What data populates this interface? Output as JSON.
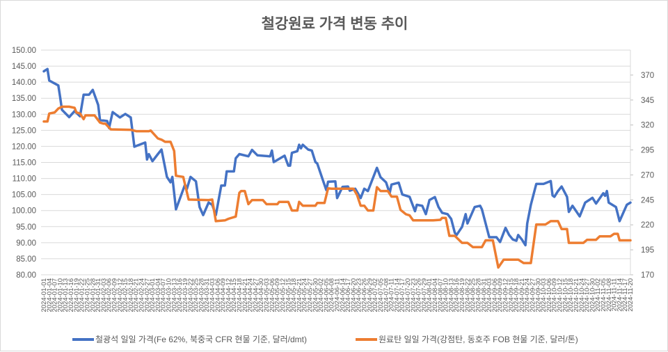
{
  "chart_data": {
    "type": "line",
    "title": "철강원료 가격 변동 추이",
    "xlabel": "",
    "ylabel": "",
    "x_start": "2024-01-01",
    "x_end": "2024-11-20",
    "y_left": {
      "lim": [
        80,
        150
      ],
      "ticks": [
        "80.00",
        "85.00",
        "90.00",
        "95.00",
        "100.00",
        "105.00",
        "110.00",
        "115.00",
        "120.00",
        "125.00",
        "130.00",
        "135.00",
        "140.00",
        "145.00",
        "150.00"
      ]
    },
    "y_right": {
      "lim": [
        170,
        395
      ],
      "ticks": [
        "170",
        "195",
        "220",
        "245",
        "270",
        "295",
        "320",
        "345",
        "370"
      ]
    },
    "grid": true,
    "legend_position": "bottom",
    "x_tick_labels": [
      "2024-01-01",
      "2024-01-04",
      "2024-01-07",
      "2024-01-10",
      "2024-01-13",
      "2024-01-16",
      "2024-01-19",
      "2024-01-22",
      "2024-01-25",
      "2024-01-28",
      "2024-01-31",
      "2024-02-03",
      "2024-02-06",
      "2024-02-09",
      "2024-02-12",
      "2024-02-15",
      "2024-02-18",
      "2024-02-21",
      "2024-02-24",
      "2024-02-27",
      "2024-03-01",
      "2024-03-04",
      "2024-03-07",
      "2024-03-10",
      "2024-03-13",
      "2024-03-16",
      "2024-03-19",
      "2024-03-22",
      "2024-03-25",
      "2024-03-28",
      "2024-03-31",
      "2024-04-03",
      "2024-04-06",
      "2024-04-09",
      "2024-04-12",
      "2024-04-15",
      "2024-04-18",
      "2024-04-21",
      "2024-04-24",
      "2024-04-27",
      "2024-04-30",
      "2024-05-03",
      "2024-05-06",
      "2024-05-09",
      "2024-05-12",
      "2024-05-15",
      "2024-05-18",
      "2024-05-21",
      "2024-05-24",
      "2024-05-27",
      "2024-05-30",
      "2024-06-02",
      "2024-06-05",
      "2024-06-08",
      "2024-06-11",
      "2024-06-14",
      "2024-06-17",
      "2024-06-20",
      "2024-06-23",
      "2024-06-26",
      "2024-06-29",
      "2024-07-02",
      "2024-07-05",
      "2024-07-08",
      "2024-07-11",
      "2024-07-14",
      "2024-07-17",
      "2024-07-20",
      "2024-07-23",
      "2024-07-26",
      "2024-07-29",
      "2024-08-01",
      "2024-08-04",
      "2024-08-07",
      "2024-08-10",
      "2024-08-13",
      "2024-08-16",
      "2024-08-19",
      "2024-08-22",
      "2024-08-25",
      "2024-08-28",
      "2024-08-31",
      "2024-09-03",
      "2024-09-06",
      "2024-09-09",
      "2024-09-12",
      "2024-09-15",
      "2024-09-18",
      "2024-09-21",
      "2024-09-24",
      "2024-09-27",
      "2024-09-30",
      "2024-10-03",
      "2024-10-06",
      "2024-10-09",
      "2024-10-12",
      "2024-10-15",
      "2024-10-18",
      "2024-10-21",
      "2024-10-24",
      "2024-10-27",
      "2024-10-30",
      "2024-11-02",
      "2024-11-05",
      "2024-11-08",
      "2024-11-11",
      "2024-11-14",
      "2024-11-17",
      "2024-11-20"
    ],
    "series": [
      {
        "name": "철광석 일일 가격(Fe 62%, 북중국 CFR 현물 기준, 달러/dmt)",
        "axis": "left",
        "color": "#4472c4",
        "points_day_value": [
          [
            0,
            143.4
          ],
          [
            2,
            144.1
          ],
          [
            3,
            140.5
          ],
          [
            8,
            139
          ],
          [
            9,
            135.4
          ],
          [
            10,
            131.4
          ],
          [
            14,
            129.1
          ],
          [
            17,
            131
          ],
          [
            20,
            129.4
          ],
          [
            22,
            136.1
          ],
          [
            25,
            136.1
          ],
          [
            27,
            137.6
          ],
          [
            30,
            132.9
          ],
          [
            31,
            128.2
          ],
          [
            35,
            127.9
          ],
          [
            36,
            125.7
          ],
          [
            38,
            130.7
          ],
          [
            42,
            129
          ],
          [
            45,
            130.1
          ],
          [
            48,
            129
          ],
          [
            50,
            119.9
          ],
          [
            56,
            121.2
          ],
          [
            57,
            115.9
          ],
          [
            58,
            117.6
          ],
          [
            60,
            115.4
          ],
          [
            63,
            117.6
          ],
          [
            65,
            119
          ],
          [
            68,
            110.5
          ],
          [
            70,
            108.8
          ],
          [
            71,
            110.5
          ],
          [
            73,
            100.4
          ],
          [
            78,
            108.1
          ],
          [
            79,
            106.7
          ],
          [
            81,
            110.5
          ],
          [
            84,
            109.1
          ],
          [
            86,
            101.1
          ],
          [
            88,
            98.6
          ],
          [
            91,
            102.5
          ],
          [
            93,
            101.8
          ],
          [
            95,
            98.6
          ],
          [
            98,
            107.8
          ],
          [
            100,
            107.8
          ],
          [
            101,
            112.2
          ],
          [
            105,
            112.2
          ],
          [
            106,
            116.3
          ],
          [
            108,
            117.6
          ],
          [
            113,
            116.9
          ],
          [
            115,
            118.9
          ],
          [
            118,
            117.2
          ],
          [
            125,
            116.9
          ],
          [
            126,
            118.7
          ],
          [
            127,
            115.1
          ],
          [
            133,
            117.1
          ],
          [
            135,
            114
          ],
          [
            136,
            114
          ],
          [
            137,
            118
          ],
          [
            140,
            118.5
          ],
          [
            141,
            120.5
          ],
          [
            142,
            119.4
          ],
          [
            143,
            120.5
          ],
          [
            146,
            119
          ],
          [
            148,
            118.7
          ],
          [
            150,
            115.1
          ],
          [
            151,
            114.7
          ],
          [
            154,
            109.7
          ],
          [
            156,
            106.4
          ],
          [
            157,
            109
          ],
          [
            161,
            109.1
          ],
          [
            162,
            103.9
          ],
          [
            165,
            107.4
          ],
          [
            168,
            107.5
          ],
          [
            169,
            106.2
          ],
          [
            172,
            106.8
          ],
          [
            175,
            103.9
          ],
          [
            177,
            106.8
          ],
          [
            179,
            106.1
          ],
          [
            184,
            113.3
          ],
          [
            186,
            110.4
          ],
          [
            189,
            108.8
          ],
          [
            191,
            105.4
          ],
          [
            192,
            108.1
          ],
          [
            196,
            108.7
          ],
          [
            198,
            105
          ],
          [
            202,
            104.3
          ],
          [
            205,
            99.8
          ],
          [
            206,
            101.8
          ],
          [
            209,
            101.5
          ],
          [
            211,
            98.9
          ],
          [
            213,
            103.3
          ],
          [
            216,
            104.2
          ],
          [
            218,
            101.1
          ],
          [
            220,
            99.3
          ],
          [
            223,
            98.9
          ],
          [
            225,
            97.4
          ],
          [
            227,
            93.1
          ],
          [
            228,
            92.4
          ],
          [
            231,
            94.9
          ],
          [
            233,
            98.9
          ],
          [
            234,
            96
          ],
          [
            238,
            101.1
          ],
          [
            241,
            101.5
          ],
          [
            242,
            100.4
          ],
          [
            244,
            96
          ],
          [
            246,
            91.7
          ],
          [
            250,
            91.7
          ],
          [
            252,
            90.2
          ],
          [
            255,
            94.6
          ],
          [
            257,
            92.4
          ],
          [
            259,
            91
          ],
          [
            261,
            90.6
          ],
          [
            262,
            92.4
          ],
          [
            264,
            91
          ],
          [
            266,
            89.2
          ],
          [
            267,
            96
          ],
          [
            269,
            101.8
          ],
          [
            272,
            108.3
          ],
          [
            276,
            108.3
          ],
          [
            280,
            109.2
          ],
          [
            281,
            104.7
          ],
          [
            282,
            104.3
          ],
          [
            284,
            106.1
          ],
          [
            286,
            107.5
          ],
          [
            289,
            104.3
          ],
          [
            290,
            99.6
          ],
          [
            292,
            101.5
          ],
          [
            296,
            98.2
          ],
          [
            299,
            102.5
          ],
          [
            302,
            103.6
          ],
          [
            303,
            104
          ],
          [
            305,
            102.2
          ],
          [
            309,
            105.4
          ],
          [
            310,
            104.6
          ],
          [
            311,
            106.1
          ],
          [
            312,
            102.5
          ],
          [
            316,
            101.1
          ],
          [
            318,
            96.7
          ],
          [
            322,
            101.8
          ],
          [
            324,
            102.5
          ]
        ]
      },
      {
        "name": "원료탄 일일 가격(강점탄, 동호주 FOB 현물 기준, 달러/톤)",
        "axis": "right",
        "color": "#ed7d31",
        "points_day_value": [
          [
            0,
            323.5
          ],
          [
            2,
            323.5
          ],
          [
            3,
            331.5
          ],
          [
            6,
            332.6
          ],
          [
            8,
            336.4
          ],
          [
            10,
            338.3
          ],
          [
            14,
            338.3
          ],
          [
            17,
            337.2
          ],
          [
            18,
            332.6
          ],
          [
            20,
            331.5
          ],
          [
            22,
            325.8
          ],
          [
            23,
            329.6
          ],
          [
            28,
            329.6
          ],
          [
            31,
            322.4
          ],
          [
            33,
            321.3
          ],
          [
            34,
            321.3
          ],
          [
            37,
            315.6
          ],
          [
            48,
            315.2
          ],
          [
            51,
            313.8
          ],
          [
            58,
            313.8
          ],
          [
            59,
            314.5
          ],
          [
            63,
            306.5
          ],
          [
            65,
            305.3
          ],
          [
            67,
            303.1
          ],
          [
            70,
            303.1
          ],
          [
            72,
            294
          ],
          [
            73,
            269.1
          ],
          [
            77,
            268
          ],
          [
            80,
            245.3
          ],
          [
            91,
            244.8
          ],
          [
            93,
            245.3
          ],
          [
            95,
            223.7
          ],
          [
            100,
            224.5
          ],
          [
            102,
            226.1
          ],
          [
            106,
            228.3
          ],
          [
            108,
            252.1
          ],
          [
            109,
            253.9
          ],
          [
            111,
            253.9
          ],
          [
            113,
            240.7
          ],
          [
            115,
            244.8
          ],
          [
            121,
            244.8
          ],
          [
            123,
            240.7
          ],
          [
            129,
            240.7
          ],
          [
            130,
            243
          ],
          [
            135,
            243
          ],
          [
            137,
            234.4
          ],
          [
            140,
            234.4
          ],
          [
            141,
            243
          ],
          [
            143,
            239.2
          ],
          [
            150,
            239.2
          ],
          [
            151,
            241.9
          ],
          [
            155,
            241.9
          ],
          [
            157,
            256.6
          ],
          [
            159,
            256.2
          ],
          [
            171,
            256.2
          ],
          [
            173,
            250
          ],
          [
            175,
            239.2
          ],
          [
            177,
            239.2
          ],
          [
            179,
            234.4
          ],
          [
            182,
            234.4
          ],
          [
            184,
            257.7
          ],
          [
            186,
            253.9
          ],
          [
            190,
            253.9
          ],
          [
            192,
            248.3
          ],
          [
            195,
            248.3
          ],
          [
            197,
            235
          ],
          [
            200,
            230.6
          ],
          [
            202,
            229.5
          ],
          [
            204,
            224.5
          ],
          [
            215,
            224.5
          ],
          [
            219,
            225
          ],
          [
            220,
            227
          ],
          [
            222,
            227
          ],
          [
            224,
            209
          ],
          [
            227,
            209
          ],
          [
            231,
            202
          ],
          [
            234,
            202
          ],
          [
            237,
            197.7
          ],
          [
            242,
            197.7
          ],
          [
            244,
            204.5
          ],
          [
            248,
            204.5
          ],
          [
            251,
            177.3
          ],
          [
            254,
            185.2
          ],
          [
            262,
            185.2
          ],
          [
            265,
            181.8
          ],
          [
            269,
            181.8
          ],
          [
            272,
            220.3
          ],
          [
            277,
            220.3
          ],
          [
            280,
            223.7
          ],
          [
            284,
            223.7
          ],
          [
            286,
            215.8
          ],
          [
            289,
            215.8
          ],
          [
            290,
            202
          ],
          [
            298,
            202
          ],
          [
            300,
            205
          ],
          [
            305,
            205
          ],
          [
            307,
            208.5
          ],
          [
            313,
            208.5
          ],
          [
            315,
            211
          ],
          [
            317,
            211
          ],
          [
            318,
            204.5
          ],
          [
            324,
            204.5
          ]
        ]
      }
    ]
  }
}
